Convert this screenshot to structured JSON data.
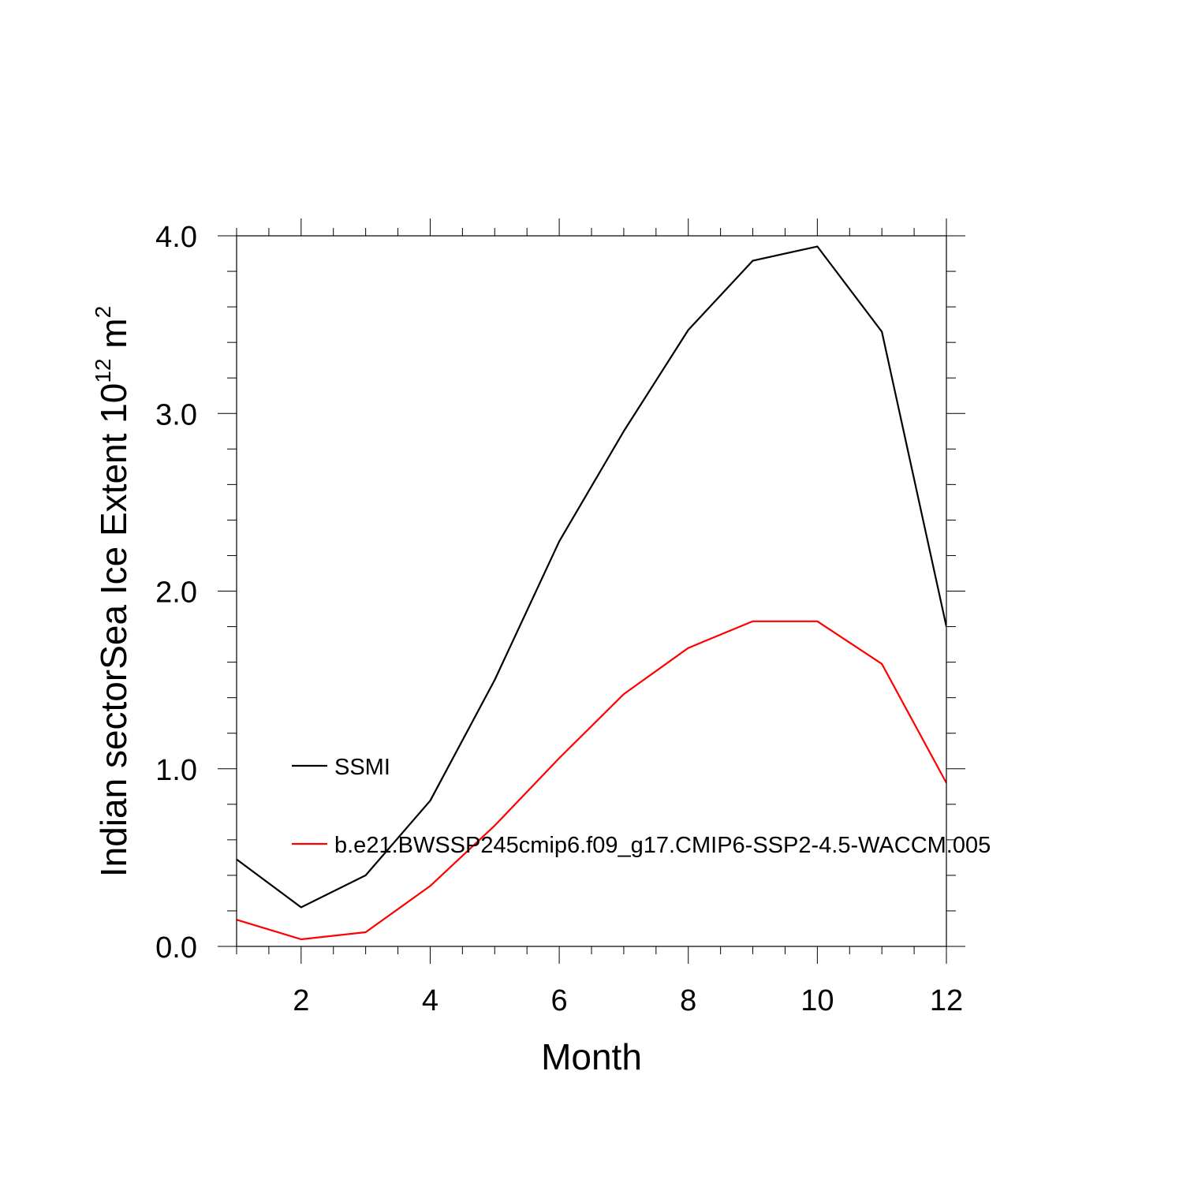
{
  "chart_data": {
    "type": "line",
    "title": "",
    "xlabel": "Month",
    "ylabel": {
      "text": "Indian sectorSea Ice Extent 10",
      "exponent": "12",
      "unit_text": " m",
      "unit_exponent": "2"
    },
    "xlim": [
      1,
      12
    ],
    "ylim": [
      0,
      4
    ],
    "x_ticks": [
      2,
      4,
      6,
      8,
      10,
      12
    ],
    "x_tick_labels": [
      "2",
      "4",
      "6",
      "8",
      "10",
      "12"
    ],
    "y_ticks": [
      0,
      1,
      2,
      3,
      4
    ],
    "y_tick_labels": [
      "0.0",
      "1.0",
      "2.0",
      "3.0",
      "4.0"
    ],
    "x": [
      1,
      2,
      3,
      4,
      5,
      6,
      7,
      8,
      9,
      10,
      11,
      12
    ],
    "series": [
      {
        "name": "SSMI",
        "color": "#000000",
        "values": [
          0.49,
          0.22,
          0.4,
          0.82,
          1.5,
          2.28,
          2.9,
          3.47,
          3.86,
          3.94,
          3.46,
          1.8
        ]
      },
      {
        "name": "b.e21.BWSSP245cmip6.f09_g17.CMIP6-SSP2-4.5-WACCM.005",
        "color": "#ff0000",
        "values": [
          0.15,
          0.04,
          0.08,
          0.34,
          0.68,
          1.06,
          1.42,
          1.68,
          1.83,
          1.83,
          1.59,
          0.92
        ]
      }
    ],
    "grid": false,
    "legend_position": "inside-left"
  }
}
